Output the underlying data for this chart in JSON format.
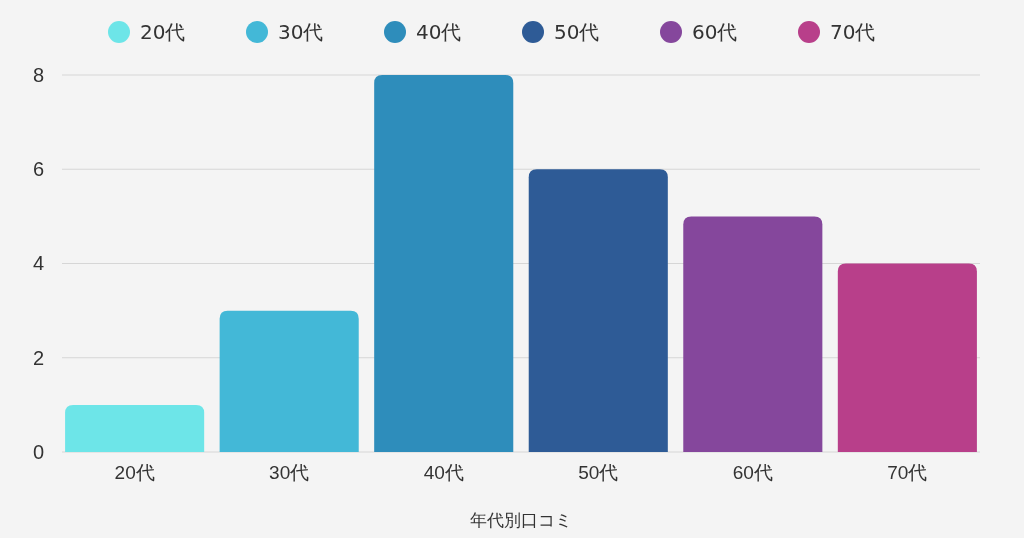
{
  "chart_data": {
    "type": "bar",
    "xlabel": "年代別口コミ",
    "categories": [
      "20代",
      "30代",
      "40代",
      "50代",
      "60代",
      "70代"
    ],
    "series": [
      {
        "name": "20代",
        "color": "#6de5e8",
        "values": [
          1,
          null,
          null,
          null,
          null,
          null
        ]
      },
      {
        "name": "30代",
        "color": "#43b8d7",
        "values": [
          null,
          3,
          null,
          null,
          null,
          null
        ]
      },
      {
        "name": "40代",
        "color": "#2e8dbb",
        "values": [
          null,
          null,
          8,
          null,
          null,
          null
        ]
      },
      {
        "name": "50代",
        "color": "#2e5b96",
        "values": [
          null,
          null,
          null,
          6,
          null,
          null
        ]
      },
      {
        "name": "60代",
        "color": "#85479c",
        "values": [
          null,
          null,
          null,
          null,
          5,
          null
        ]
      },
      {
        "name": "70代",
        "color": "#b83f8a",
        "values": [
          null,
          null,
          null,
          null,
          null,
          4
        ]
      }
    ],
    "ylim": [
      0,
      8
    ],
    "yticks": [
      0,
      2,
      4,
      6,
      8
    ],
    "grid": "y",
    "legend": "top"
  }
}
